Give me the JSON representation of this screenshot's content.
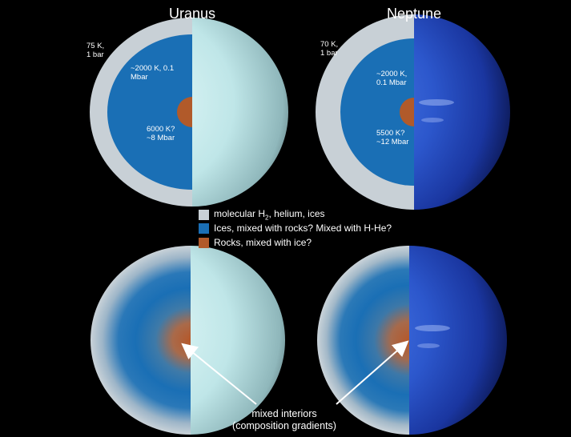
{
  "titles": {
    "uranus": "Uranus",
    "neptune": "Neptune"
  },
  "uranus_labels": {
    "surface": "75 K,",
    "surface2": "1 bar",
    "mid": "~2000 K, 0.1",
    "mid2": "Mbar",
    "core": "6000 K?",
    "core2": "~8 Mbar"
  },
  "neptune_labels": {
    "surface": "70 K,",
    "surface2": "1 bar",
    "mid": "~2000 K,",
    "mid2": "0.1 Mbar",
    "core": "5500 K?",
    "core2": "~12 Mbar"
  },
  "legend": {
    "item1_prefix": "molecular H",
    "item1_sub": "2",
    "item1_suffix": ", helium, ices",
    "item2": "Ices, mixed with rocks? Mixed with H-He?",
    "item3": "Rocks, mixed with ice?"
  },
  "caption": {
    "line1": "mixed interiors",
    "line2": "(composition gradients)"
  },
  "colors": {
    "background": "#000000",
    "envelope": "#c8d0d6",
    "mantle": "#1a6fb5",
    "core": "#b15a2a",
    "uranus_surface": "#cdeff0",
    "neptune_surface": "#2f56c8"
  }
}
